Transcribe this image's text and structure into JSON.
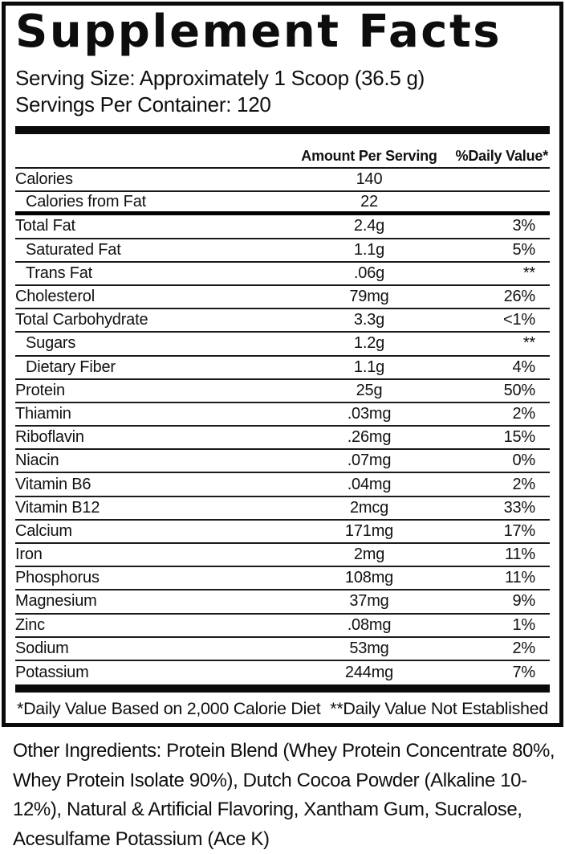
{
  "title": "Supplement Facts",
  "serving": {
    "size": "Serving Size: Approximately 1 Scoop (36.5 g)",
    "per_container": "Servings Per Container: 120"
  },
  "columns": {
    "amount": "Amount Per Serving",
    "daily_value": "%Daily Value*"
  },
  "rows": [
    {
      "label": "Calories",
      "amount": "140",
      "dv": "",
      "indent": false,
      "divider": "thin"
    },
    {
      "label": "Calories from Fat",
      "amount": "22",
      "dv": "",
      "indent": true,
      "divider": "thick"
    },
    {
      "label": "Total Fat",
      "amount": "2.4g",
      "dv": "3%",
      "indent": false,
      "divider": "thin"
    },
    {
      "label": "Saturated Fat",
      "amount": "1.1g",
      "dv": "5%",
      "indent": true,
      "divider": "thin"
    },
    {
      "label": "Trans Fat",
      "amount": ".06g",
      "dv": "**",
      "indent": true,
      "divider": "thin"
    },
    {
      "label": "Cholesterol",
      "amount": "79mg",
      "dv": "26%",
      "indent": false,
      "divider": "thin"
    },
    {
      "label": "Total Carbohydrate",
      "amount": "3.3g",
      "dv": "<1%",
      "indent": false,
      "divider": "thin"
    },
    {
      "label": "Sugars",
      "amount": "1.2g",
      "dv": "**",
      "indent": true,
      "divider": "thin"
    },
    {
      "label": "Dietary Fiber",
      "amount": "1.1g",
      "dv": "4%",
      "indent": true,
      "divider": "thin"
    },
    {
      "label": "Protein",
      "amount": "25g",
      "dv": "50%",
      "indent": false,
      "divider": "thin"
    },
    {
      "label": "Thiamin",
      "amount": ".03mg",
      "dv": "2%",
      "indent": false,
      "divider": "thin"
    },
    {
      "label": "Riboflavin",
      "amount": ".26mg",
      "dv": "15%",
      "indent": false,
      "divider": "thin"
    },
    {
      "label": "Niacin",
      "amount": ".07mg",
      "dv": "0%",
      "indent": false,
      "divider": "thin"
    },
    {
      "label": "Vitamin B6",
      "amount": ".04mg",
      "dv": "2%",
      "indent": false,
      "divider": "thin"
    },
    {
      "label": "Vitamin B12",
      "amount": "2mcg",
      "dv": "33%",
      "indent": false,
      "divider": "thin"
    },
    {
      "label": "Calcium",
      "amount": "171mg",
      "dv": "17%",
      "indent": false,
      "divider": "thin"
    },
    {
      "label": "Iron",
      "amount": "2mg",
      "dv": "11%",
      "indent": false,
      "divider": "thin"
    },
    {
      "label": "Phosphorus",
      "amount": "108mg",
      "dv": "11%",
      "indent": false,
      "divider": "thin"
    },
    {
      "label": "Magnesium",
      "amount": "37mg",
      "dv": "9%",
      "indent": false,
      "divider": "thin"
    },
    {
      "label": "Zinc",
      "amount": ".08mg",
      "dv": "1%",
      "indent": false,
      "divider": "thin"
    },
    {
      "label": "Sodium",
      "amount": "53mg",
      "dv": "2%",
      "indent": false,
      "divider": "thin"
    },
    {
      "label": "Potassium",
      "amount": "244mg",
      "dv": "7%",
      "indent": false,
      "divider": "none"
    }
  ],
  "footnotes": {
    "left": "*Daily Value Based on 2,000 Calorie Diet",
    "right": "**Daily Value Not Established"
  },
  "other_ingredients": "Other Ingredients: Protein Blend (Whey Protein Concentrate 80%, Whey Protein Isolate 90%), Dutch Cocoa Powder (Alkaline 10-12%), Natural & Artificial Flavoring, Xantham Gum, Sucralose, Acesulfame Potassium (Ace K)"
}
